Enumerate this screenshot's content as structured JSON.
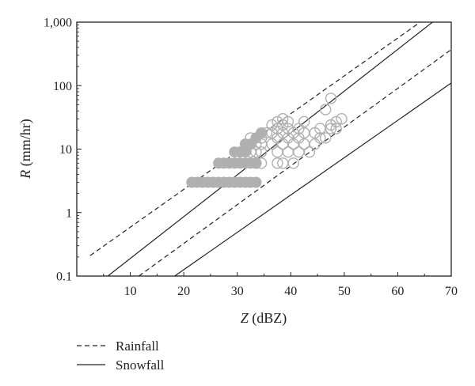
{
  "chart_data": {
    "type": "scatter",
    "title": "",
    "xlabel": {
      "var": "Z",
      "unit": " (dBZ)"
    },
    "ylabel": {
      "var": "R",
      "unit": " (mm/hr)"
    },
    "xlim": [
      0,
      70
    ],
    "ylim": [
      0.1,
      1000
    ],
    "yscale": "log",
    "grid": false,
    "x_ticks": [
      {
        "value": 10,
        "label": "10"
      },
      {
        "value": 20,
        "label": "20"
      },
      {
        "value": 30,
        "label": "30"
      },
      {
        "value": 40,
        "label": "40"
      },
      {
        "value": 50,
        "label": "50"
      },
      {
        "value": 60,
        "label": "60"
      },
      {
        "value": 70,
        "label": "70"
      }
    ],
    "y_ticks": [
      {
        "value": 0.1,
        "label": "0.1"
      },
      {
        "value": 1,
        "label": "1"
      },
      {
        "value": 10,
        "label": "10"
      },
      {
        "value": 100,
        "label": "100"
      },
      {
        "value": 1000,
        "label": "1,000"
      }
    ],
    "legend": {
      "position": "bottom-left, below plot",
      "entries": [
        {
          "label": "Rainfall",
          "style": "dashed"
        },
        {
          "label": "Snowfall",
          "style": "solid"
        }
      ]
    },
    "reference_lines": [
      {
        "group": "Rainfall",
        "style": "dashed",
        "points": [
          [
            2.5,
            0.21
          ],
          [
            64.2,
            1000
          ]
        ]
      },
      {
        "group": "Rainfall",
        "style": "dashed",
        "points": [
          [
            11.6,
            0.1
          ],
          [
            70,
            370
          ]
        ]
      },
      {
        "group": "Snowfall",
        "style": "solid",
        "points": [
          [
            5.8,
            0.1
          ],
          [
            66.5,
            1000
          ]
        ]
      },
      {
        "group": "Snowfall",
        "style": "solid",
        "points": [
          [
            18.3,
            0.1
          ],
          [
            70,
            110
          ]
        ]
      }
    ],
    "series": [
      {
        "style": "filled",
        "color": "#b0b0b0",
        "points": [
          [
            21.5,
            3
          ],
          [
            22.5,
            3
          ],
          [
            23.5,
            3
          ],
          [
            24.5,
            3
          ],
          [
            25.5,
            3
          ],
          [
            26.5,
            3
          ],
          [
            27.5,
            3
          ],
          [
            28.5,
            3
          ],
          [
            29.5,
            3
          ],
          [
            30.5,
            3
          ],
          [
            31.5,
            3
          ],
          [
            32.5,
            3
          ],
          [
            33.5,
            3
          ],
          [
            26.5,
            6
          ],
          [
            27.5,
            6
          ],
          [
            28.5,
            6
          ],
          [
            29.5,
            6
          ],
          [
            30.5,
            6
          ],
          [
            31.5,
            6
          ],
          [
            32.5,
            6
          ],
          [
            33.5,
            6
          ],
          [
            29.5,
            9
          ],
          [
            30.5,
            9
          ],
          [
            31.5,
            9
          ],
          [
            31.5,
            12
          ],
          [
            32.5,
            12
          ],
          [
            33.5,
            15
          ],
          [
            34.5,
            18
          ]
        ]
      },
      {
        "style": "hollow",
        "color": "#b0b0b0",
        "points": [
          [
            33.5,
            6
          ],
          [
            34.5,
            6
          ],
          [
            32.5,
            9
          ],
          [
            33.5,
            9
          ],
          [
            34.5,
            9
          ],
          [
            33.5,
            12
          ],
          [
            34.5,
            12
          ],
          [
            32.5,
            15
          ],
          [
            34.5,
            15
          ],
          [
            35.5,
            18
          ],
          [
            37.5,
            6
          ],
          [
            38.5,
            6
          ],
          [
            40.5,
            6
          ],
          [
            37.5,
            9
          ],
          [
            39.5,
            9
          ],
          [
            41.5,
            9
          ],
          [
            43.5,
            9
          ],
          [
            36.5,
            12
          ],
          [
            38.5,
            12
          ],
          [
            40.5,
            12
          ],
          [
            42.5,
            12
          ],
          [
            44.5,
            12
          ],
          [
            37.5,
            15
          ],
          [
            39.5,
            15
          ],
          [
            41.5,
            15
          ],
          [
            45.5,
            15
          ],
          [
            46.5,
            15
          ],
          [
            36.5,
            18
          ],
          [
            38.5,
            18
          ],
          [
            40.5,
            18
          ],
          [
            42.5,
            18
          ],
          [
            44.5,
            18
          ],
          [
            37.5,
            21
          ],
          [
            39.5,
            21
          ],
          [
            41.5,
            21
          ],
          [
            45.5,
            21
          ],
          [
            47.5,
            21
          ],
          [
            48.5,
            21
          ],
          [
            36.5,
            24
          ],
          [
            38.5,
            24
          ],
          [
            47.5,
            24
          ],
          [
            37.5,
            27
          ],
          [
            39.5,
            27
          ],
          [
            42.5,
            27
          ],
          [
            48.5,
            27
          ],
          [
            38.5,
            30
          ],
          [
            49.5,
            30
          ],
          [
            46.5,
            42
          ],
          [
            47.5,
            63
          ]
        ]
      }
    ]
  }
}
